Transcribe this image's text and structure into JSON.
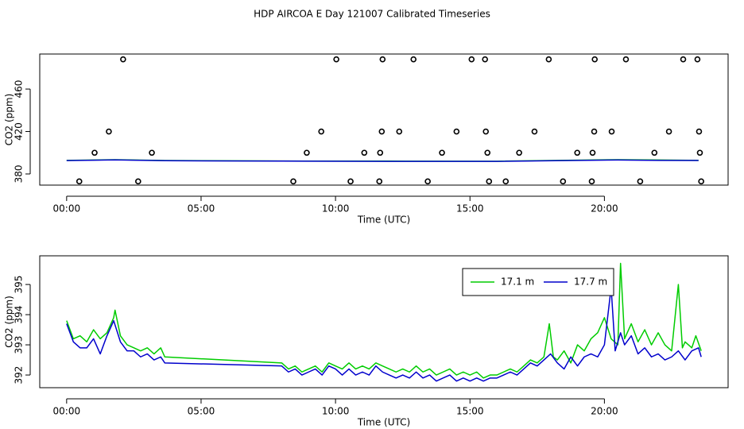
{
  "title": "HDP AIRCOA E  Day 121007  Calibrated Timeseries",
  "chart_data": [
    {
      "type": "scatter",
      "xlabel": "Time (UTC)",
      "ylabel": "CO2 (ppm)",
      "xlim": [
        -1.0,
        24.6
      ],
      "ylim": [
        369.5,
        493
      ],
      "xticks": [
        {
          "value": 0,
          "label": "00:00"
        },
        {
          "value": 5,
          "label": "05:00"
        },
        {
          "value": 10,
          "label": "10:00"
        },
        {
          "value": 15,
          "label": "15:00"
        },
        {
          "value": 20,
          "label": "20:00"
        }
      ],
      "yticks": [
        380,
        420,
        460
      ],
      "series": [
        {
          "style": "points",
          "color": "#000000",
          "x": [
            0.47,
            1.04,
            1.57,
            2.1,
            2.66,
            3.17,
            8.43,
            8.93,
            9.47,
            10.03,
            10.56,
            11.07,
            11.63,
            11.66,
            11.72,
            11.75,
            12.37,
            12.9,
            13.43,
            13.96,
            14.5,
            15.06,
            15.56,
            15.59,
            15.65,
            15.71,
            16.33,
            16.83,
            17.4,
            17.93,
            18.46,
            18.99,
            19.53,
            19.56,
            19.62,
            19.64,
            20.27,
            20.8,
            21.33,
            21.86,
            22.4,
            22.93,
            23.46,
            23.52,
            23.55,
            23.6
          ],
          "values": [
            373,
            400,
            420,
            488,
            373,
            400,
            373,
            400,
            420,
            488,
            373,
            400,
            373,
            400,
            420,
            488,
            420,
            488,
            373,
            400,
            420,
            488,
            488,
            420,
            400,
            373,
            373,
            400,
            420,
            488,
            373,
            400,
            373,
            400,
            420,
            488,
            420,
            488,
            373,
            400,
            420,
            488,
            488,
            420,
            400,
            373
          ]
        },
        {
          "style": "line",
          "color": "#00cc00",
          "x": [
            0,
            1.8,
            3.65,
            8,
            12,
            16,
            20.5,
            22,
            23.5
          ],
          "values": [
            392.8,
            393.5,
            392.7,
            392.2,
            392.1,
            392.0,
            393.5,
            393.2,
            392.8
          ]
        },
        {
          "style": "line",
          "color": "#0000cc",
          "x": [
            0,
            1.8,
            3.65,
            8,
            12,
            16,
            20.5,
            22,
            23.5
          ],
          "values": [
            392.6,
            393.3,
            392.5,
            392.1,
            391.9,
            391.9,
            393.2,
            392.8,
            392.7
          ]
        }
      ]
    },
    {
      "type": "line",
      "xlabel": "Time (UTC)",
      "ylabel": "CO2 (ppm)",
      "xlim": [
        -1.0,
        24.6
      ],
      "ylim": [
        391.58,
        395.95
      ],
      "xticks": [
        {
          "value": 0,
          "label": "00:00"
        },
        {
          "value": 5,
          "label": "05:00"
        },
        {
          "value": 10,
          "label": "10:00"
        },
        {
          "value": 15,
          "label": "15:00"
        },
        {
          "value": 20,
          "label": "20:00"
        }
      ],
      "yticks": [
        392,
        393,
        394,
        395
      ],
      "legend": "topright",
      "series": [
        {
          "name": "17.1 m",
          "style": "line",
          "color": "#00cc00",
          "x": [
            0,
            0.25,
            0.5,
            0.75,
            1.0,
            1.25,
            1.5,
            1.75,
            1.8,
            2.0,
            2.25,
            2.5,
            2.75,
            3.0,
            3.25,
            3.5,
            3.65,
            8.0,
            8.25,
            8.5,
            8.75,
            9.0,
            9.25,
            9.5,
            9.75,
            10.0,
            10.25,
            10.5,
            10.75,
            11.0,
            11.25,
            11.5,
            11.75,
            12.0,
            12.25,
            12.5,
            12.75,
            13.0,
            13.25,
            13.5,
            13.75,
            14.0,
            14.25,
            14.5,
            14.75,
            15.0,
            15.25,
            15.5,
            15.75,
            16.0,
            16.25,
            16.5,
            16.75,
            17.0,
            17.25,
            17.5,
            17.75,
            17.95,
            18.1,
            18.25,
            18.5,
            18.75,
            19.0,
            19.25,
            19.5,
            19.75,
            20.0,
            20.25,
            20.5,
            20.6,
            20.75,
            21.0,
            21.25,
            21.5,
            21.75,
            22.0,
            22.25,
            22.5,
            22.75,
            22.9,
            23.0,
            23.25,
            23.4,
            23.6
          ],
          "values": [
            393.8,
            393.2,
            393.3,
            393.1,
            393.5,
            393.2,
            393.4,
            393.9,
            394.15,
            393.3,
            393.0,
            392.9,
            392.8,
            392.9,
            392.7,
            392.9,
            392.6,
            392.4,
            392.2,
            392.3,
            392.1,
            392.2,
            392.3,
            392.1,
            392.4,
            392.3,
            392.2,
            392.4,
            392.2,
            392.3,
            392.2,
            392.4,
            392.3,
            392.2,
            392.1,
            392.2,
            392.1,
            392.3,
            392.1,
            392.2,
            392.0,
            392.1,
            392.2,
            392.0,
            392.1,
            392.0,
            392.1,
            391.9,
            392.0,
            392.0,
            392.1,
            392.2,
            392.1,
            392.3,
            392.5,
            392.4,
            392.6,
            393.7,
            392.6,
            392.5,
            392.8,
            392.4,
            393.0,
            392.8,
            393.2,
            393.4,
            393.9,
            393.2,
            393.0,
            395.7,
            393.2,
            393.7,
            393.1,
            393.5,
            393.0,
            393.4,
            393.0,
            392.8,
            395.0,
            392.9,
            393.1,
            392.9,
            393.3,
            392.8
          ]
        },
        {
          "name": "17.7 m",
          "style": "line",
          "color": "#0000cc",
          "x": [
            0,
            0.25,
            0.5,
            0.75,
            1.0,
            1.25,
            1.5,
            1.75,
            2.0,
            2.25,
            2.5,
            2.75,
            3.0,
            3.25,
            3.5,
            3.65,
            8.0,
            8.25,
            8.5,
            8.75,
            9.0,
            9.25,
            9.5,
            9.75,
            10.0,
            10.25,
            10.5,
            10.75,
            11.0,
            11.25,
            11.5,
            11.75,
            12.0,
            12.25,
            12.5,
            12.75,
            13.0,
            13.25,
            13.5,
            13.75,
            14.0,
            14.25,
            14.5,
            14.75,
            15.0,
            15.25,
            15.5,
            15.75,
            16.0,
            16.25,
            16.5,
            16.75,
            17.0,
            17.25,
            17.5,
            17.75,
            18.0,
            18.25,
            18.5,
            18.75,
            19.0,
            19.25,
            19.5,
            19.75,
            20.0,
            20.25,
            20.4,
            20.6,
            20.75,
            21.0,
            21.25,
            21.5,
            21.75,
            22.0,
            22.25,
            22.5,
            22.75,
            23.0,
            23.25,
            23.5,
            23.6
          ],
          "values": [
            393.7,
            393.1,
            392.9,
            392.9,
            393.2,
            392.7,
            393.3,
            393.8,
            393.1,
            392.8,
            392.8,
            392.6,
            392.7,
            392.5,
            392.6,
            392.4,
            392.3,
            392.1,
            392.2,
            392.0,
            392.1,
            392.2,
            392.0,
            392.3,
            392.2,
            392.0,
            392.2,
            392.0,
            392.1,
            392.0,
            392.3,
            392.1,
            392.0,
            391.9,
            392.0,
            391.9,
            392.1,
            391.9,
            392.0,
            391.8,
            391.9,
            392.0,
            391.8,
            391.9,
            391.8,
            391.9,
            391.8,
            391.9,
            391.9,
            392.0,
            392.1,
            392.0,
            392.2,
            392.4,
            392.3,
            392.5,
            392.7,
            392.4,
            392.2,
            392.6,
            392.3,
            392.6,
            392.7,
            392.6,
            393.0,
            394.9,
            392.8,
            393.4,
            393.0,
            393.3,
            392.7,
            392.9,
            392.6,
            392.7,
            392.5,
            392.6,
            392.8,
            392.5,
            392.8,
            392.9,
            392.6
          ]
        }
      ]
    }
  ]
}
